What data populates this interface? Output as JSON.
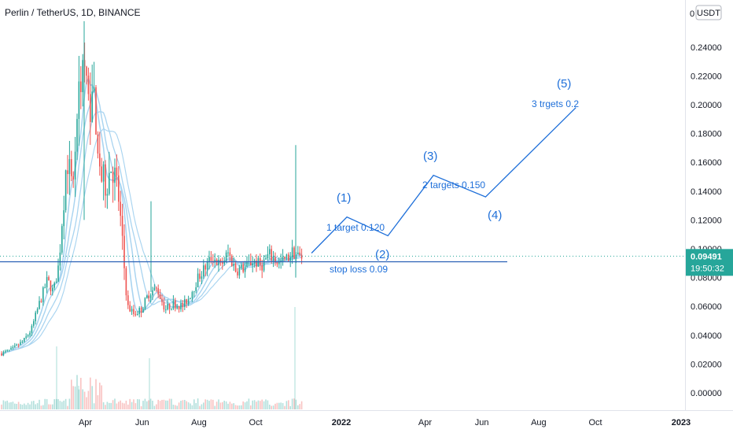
{
  "header": {
    "title": "Perlin / TetherUS, 1D, BINANCE",
    "currency_label": "USDT",
    "top_tick_fragment": "0"
  },
  "colors": {
    "up": "#26a69a",
    "down": "#ef5350",
    "annotation": "#1e6fd9",
    "ma": "#a9d4f0",
    "price_tag_bg": "#26a69a",
    "stop_line": "#2a5fb5"
  },
  "chart_data": {
    "type": "candlestick",
    "title": "Perlin / TetherUS, 1D, BINANCE",
    "ylim": [
      -0.004,
      0.26
    ],
    "y_ticks": [
      "0.24000",
      "0.22000",
      "0.20000",
      "0.18000",
      "0.16000",
      "0.14000",
      "0.12000",
      "0.10000",
      "0.08000",
      "0.06000",
      "0.04000",
      "0.02000",
      "0.00000"
    ],
    "x_ticks": [
      "Apr",
      "Jun",
      "Aug",
      "Oct",
      "2022",
      "Apr",
      "Jun",
      "Aug",
      "Oct",
      "2023"
    ],
    "price": {
      "last": "0.09491",
      "countdown": "19:50:32",
      "value": 0.09491
    },
    "stop_loss": {
      "label": "stop loss 0.09",
      "value": 0.091
    },
    "projection": {
      "path": [
        {
          "date": "2021-11-30",
          "value": 0.097
        },
        {
          "date": "2022-01-07",
          "value": 0.122
        },
        {
          "date": "2022-02-20",
          "value": 0.109
        },
        {
          "date": "2022-04-10",
          "value": 0.151
        },
        {
          "date": "2022-06-05",
          "value": 0.136
        },
        {
          "date": "2022-09-10",
          "value": 0.198
        }
      ],
      "waves": [
        "(1)",
        "(2)",
        "(3)",
        "(4)",
        "(5)"
      ],
      "targets": [
        "1 target 0.120",
        "2 targets 0.150",
        "3 trgets 0.2"
      ]
    }
  }
}
